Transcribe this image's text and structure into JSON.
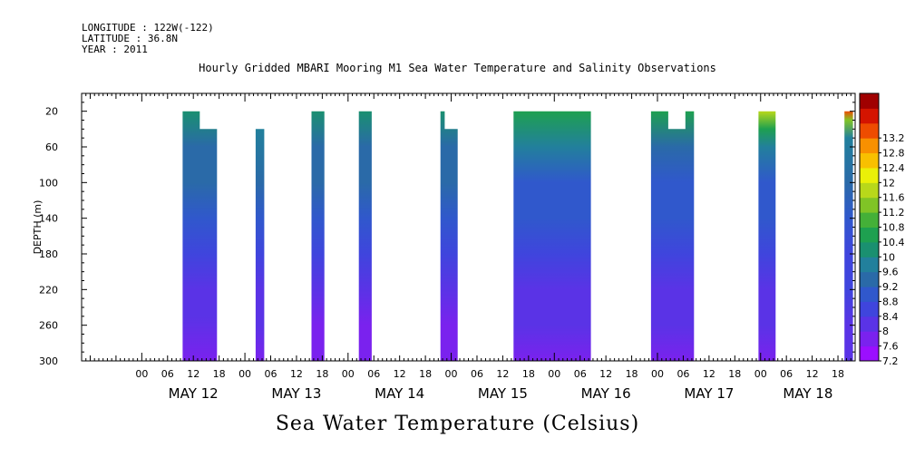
{
  "header": {
    "longitude": "LONGITUDE : 122W(-122)",
    "latitude": "LATITUDE : 36.8N",
    "year": "YEAR : 2011",
    "title": "Hourly Gridded MBARI Mooring M1 Sea Water Temperature and Salinity Observations"
  },
  "chart_data": {
    "type": "heatmap",
    "title": "Sea Water Temperature (Celsius)",
    "xlabel": "",
    "ylabel": "DEPTH (m)",
    "x_unit": "hours since MAY 12 00:00",
    "xlim": [
      -14,
      166
    ],
    "ylim": [
      0,
      300
    ],
    "y_inverted": true,
    "y_ticks": [
      20,
      60,
      100,
      140,
      180,
      220,
      260,
      300
    ],
    "x_tick_hours": [
      0,
      6,
      12,
      18,
      24,
      30,
      36,
      42,
      48,
      54,
      60,
      66,
      72,
      78,
      84,
      90,
      96,
      102,
      108,
      114,
      120,
      126,
      132,
      138,
      144,
      150,
      156,
      162
    ],
    "x_tick_labels": [
      "00",
      "06",
      "12",
      "18",
      "00",
      "06",
      "12",
      "18",
      "00",
      "06",
      "12",
      "18",
      "00",
      "06",
      "12",
      "18",
      "00",
      "06",
      "12",
      "18",
      "00",
      "06",
      "12",
      "18",
      "00",
      "06",
      "12",
      "18"
    ],
    "day_labels": [
      {
        "label": "MAY 12",
        "hour": 12
      },
      {
        "label": "MAY 13",
        "hour": 36
      },
      {
        "label": "MAY 14",
        "hour": 60
      },
      {
        "label": "MAY 15",
        "hour": 84
      },
      {
        "label": "MAY 16",
        "hour": 108
      },
      {
        "label": "MAY 17",
        "hour": 132
      },
      {
        "label": "MAY 18",
        "hour": 155
      }
    ],
    "colorbar": {
      "levels": [
        7.2,
        7.6,
        8,
        8.4,
        8.8,
        9.2,
        9.6,
        10,
        10.4,
        10.8,
        11.2,
        11.6,
        12,
        12.4,
        12.8,
        13.2
      ],
      "labels": [
        "7.2",
        "7.6",
        "8",
        "8.4",
        "8.8",
        "9.2",
        "9.6",
        "10",
        "10.4",
        "10.8",
        "11.2",
        "11.6",
        "12",
        "12.4",
        "12.8",
        "13.2"
      ],
      "colors": [
        "#9b0fff",
        "#7a22ee",
        "#5a33e6",
        "#3f45dd",
        "#3058cc",
        "#2a6aa8",
        "#22809c",
        "#1a9070",
        "#1ea050",
        "#44b038",
        "#80c426",
        "#b8d81a",
        "#eaf008",
        "#f8c000",
        "#f89000",
        "#ee4c00",
        "#d41400",
        "#a00000"
      ]
    },
    "segments": [
      {
        "start": 9.5,
        "end": 17.5,
        "top": 20,
        "notch": {
          "from": 13.5,
          "top": 40
        },
        "temp_profile": [
          [
            20,
            9.6
          ],
          [
            60,
            9.1
          ],
          [
            100,
            8.8
          ],
          [
            140,
            8.5
          ],
          [
            180,
            8.2
          ],
          [
            220,
            7.9
          ],
          [
            250,
            7.6
          ],
          [
            300,
            7.3
          ]
        ]
      },
      {
        "start": 26.5,
        "end": 28.5,
        "top": 40,
        "temp_profile": [
          [
            40,
            9.2
          ],
          [
            100,
            8.8
          ],
          [
            140,
            8.5
          ],
          [
            180,
            8.2
          ],
          [
            220,
            7.9
          ],
          [
            260,
            7.6
          ],
          [
            300,
            7.4
          ]
        ]
      },
      {
        "start": 39.5,
        "end": 42.5,
        "top": 20,
        "temp_profile": [
          [
            20,
            9.8
          ],
          [
            60,
            9.1
          ],
          [
            100,
            8.8
          ],
          [
            140,
            8.5
          ],
          [
            180,
            8.2
          ],
          [
            220,
            7.9
          ],
          [
            260,
            7.5
          ],
          [
            300,
            7.3
          ]
        ]
      },
      {
        "start": 50.5,
        "end": 53.5,
        "top": 20,
        "temp_profile": [
          [
            20,
            9.8
          ],
          [
            60,
            9.1
          ],
          [
            100,
            8.8
          ],
          [
            140,
            8.5
          ],
          [
            180,
            8.2
          ],
          [
            220,
            7.9
          ],
          [
            260,
            7.5
          ],
          [
            300,
            7.3
          ]
        ]
      },
      {
        "start": 69.5,
        "end": 73.5,
        "top": 20,
        "notch": {
          "from": 70.5,
          "top": 40
        },
        "temp_profile": [
          [
            20,
            9.6
          ],
          [
            60,
            9.1
          ],
          [
            100,
            8.8
          ],
          [
            140,
            8.5
          ],
          [
            180,
            8.2
          ],
          [
            220,
            7.9
          ],
          [
            260,
            7.5
          ],
          [
            300,
            7.3
          ]
        ]
      },
      {
        "start": 86.5,
        "end": 104.5,
        "top": 20,
        "temp_profile": [
          [
            20,
            10.3
          ],
          [
            60,
            9.3
          ],
          [
            100,
            8.7
          ],
          [
            140,
            8.4
          ],
          [
            180,
            8.1
          ],
          [
            220,
            7.9
          ],
          [
            260,
            7.6
          ],
          [
            300,
            7.3
          ]
        ]
      },
      {
        "start": 118.5,
        "end": 128.5,
        "top": 20,
        "notch": {
          "from": 122.5,
          "to": 126.5,
          "top": 40
        },
        "temp_profile": [
          [
            20,
            10.0
          ],
          [
            60,
            9.1
          ],
          [
            100,
            8.7
          ],
          [
            140,
            8.4
          ],
          [
            180,
            8.1
          ],
          [
            220,
            7.9
          ],
          [
            260,
            7.6
          ],
          [
            300,
            7.4
          ]
        ]
      },
      {
        "start": 143.5,
        "end": 147.5,
        "top": 20,
        "temp_profile": [
          [
            20,
            11.3
          ],
          [
            40,
            10.0
          ],
          [
            60,
            9.2
          ],
          [
            100,
            8.7
          ],
          [
            140,
            8.4
          ],
          [
            180,
            8.1
          ],
          [
            220,
            7.9
          ],
          [
            260,
            7.6
          ],
          [
            300,
            7.4
          ]
        ]
      },
      {
        "start": 163.5,
        "end": 165.5,
        "top": 20,
        "temp_profile": [
          [
            20,
            13.0
          ],
          [
            30,
            11.0
          ],
          [
            50,
            9.5
          ],
          [
            100,
            8.8
          ],
          [
            140,
            8.5
          ],
          [
            180,
            8.2
          ],
          [
            220,
            8.0
          ],
          [
            260,
            7.8
          ],
          [
            300,
            7.6
          ]
        ]
      }
    ]
  }
}
